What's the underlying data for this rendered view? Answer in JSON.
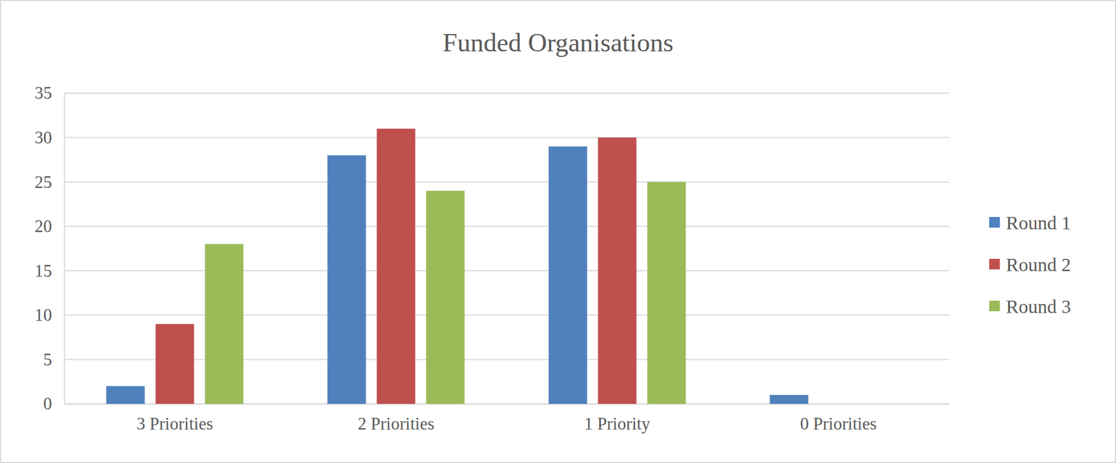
{
  "chart_data": {
    "type": "bar",
    "title": "Funded Organisations",
    "categories": [
      "3 Priorities",
      "2 Priorities",
      "1 Priority",
      "0 Priorities"
    ],
    "series": [
      {
        "name": "Round 1",
        "color": "#4f81bd",
        "values": [
          2,
          28,
          29,
          1
        ]
      },
      {
        "name": "Round 2",
        "color": "#c0504d",
        "values": [
          9,
          31,
          30,
          0
        ]
      },
      {
        "name": "Round 3",
        "color": "#9bbb59",
        "values": [
          18,
          24,
          25,
          0
        ]
      }
    ],
    "ylim": [
      0,
      35
    ],
    "yticks": [
      0,
      5,
      10,
      15,
      20,
      25,
      30,
      35
    ],
    "grid": true,
    "legend": "right"
  }
}
